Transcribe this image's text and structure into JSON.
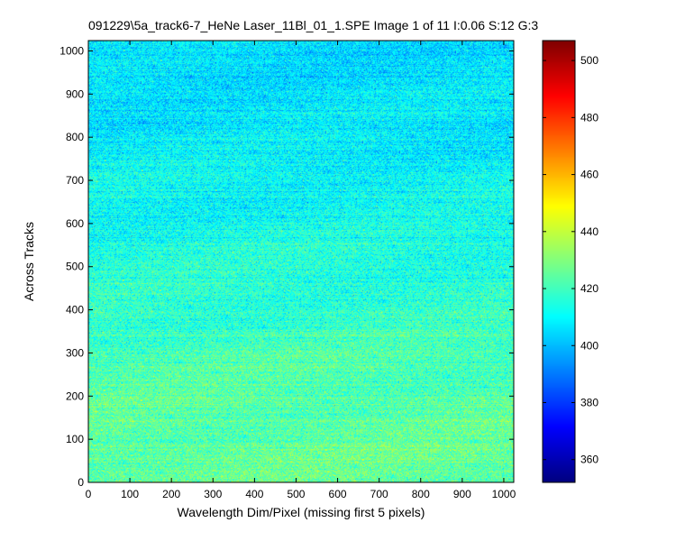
{
  "chart_data": {
    "type": "heatmap",
    "title": "091229\\5a_track6-7_HeNe Laser_11Bl_01_1.SPE  Image 1 of 11  I:0.06  S:12  G:3",
    "xlabel": "Wavelength Dim/Pixel (missing first 5 pixels)",
    "ylabel": "Across Tracks",
    "xlim": [
      0,
      1024
    ],
    "ylim": [
      0,
      1024
    ],
    "x_ticks": [
      0,
      100,
      200,
      300,
      400,
      500,
      600,
      700,
      800,
      900,
      1000
    ],
    "y_ticks": [
      0,
      100,
      200,
      300,
      400,
      500,
      600,
      700,
      800,
      900,
      1000
    ],
    "colorbar": {
      "colormap": "jet",
      "clim": [
        352,
        507
      ],
      "ticks": [
        360,
        380,
        400,
        420,
        440,
        460,
        480,
        500
      ]
    },
    "value_trend": {
      "description_points_y": [
        0,
        200,
        400,
        600,
        800,
        1024
      ],
      "mean_values": [
        426,
        424,
        418,
        413,
        408,
        405
      ]
    },
    "legend": "none",
    "grid": false
  }
}
